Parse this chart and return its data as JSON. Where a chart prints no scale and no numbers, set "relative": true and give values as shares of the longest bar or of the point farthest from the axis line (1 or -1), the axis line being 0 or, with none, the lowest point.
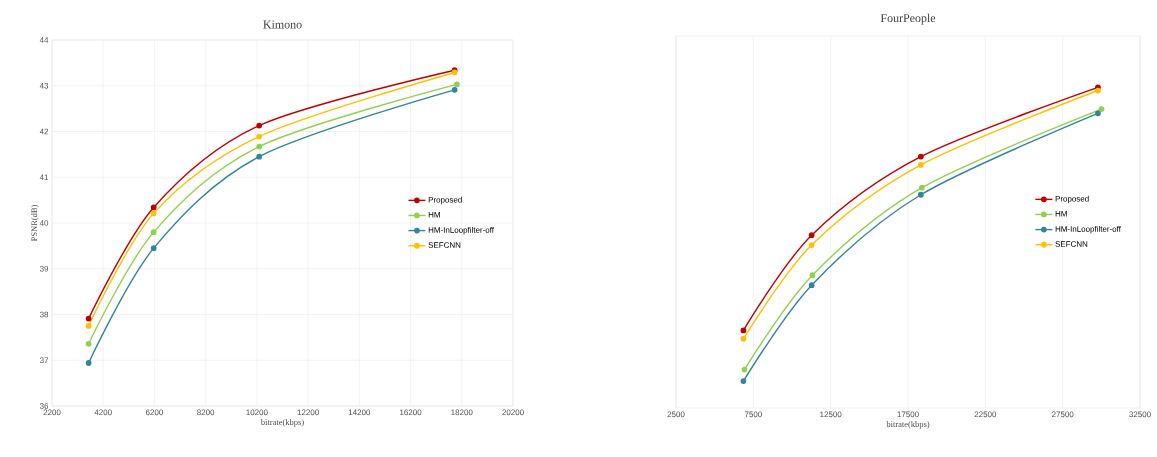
{
  "chart_data": [
    {
      "type": "line",
      "title": "Kimono",
      "xlabel": "bitrate(kbps)",
      "ylabel": "PSNR(dB)",
      "xlim": [
        2200,
        20200
      ],
      "xticks": [
        2200,
        4200,
        6200,
        8200,
        10200,
        12200,
        14200,
        16200,
        18200,
        20200
      ],
      "ylim": [
        36,
        44
      ],
      "yticks": [
        36,
        37,
        38,
        39,
        40,
        41,
        42,
        43,
        44
      ],
      "grid": true,
      "legend": "right",
      "marker": "circle",
      "line_style": "solid",
      "series": [
        {
          "name": "Proposed",
          "color": "#c00000",
          "x": [
            3630,
            6170,
            10290,
            17920
          ],
          "values": [
            37.91,
            40.34,
            42.13,
            43.34
          ]
        },
        {
          "name": "HM",
          "color": "#92d050",
          "x": [
            3630,
            6170,
            10290,
            18010
          ],
          "values": [
            37.36,
            39.8,
            41.67,
            43.03
          ]
        },
        {
          "name": "HM-InLoopfilter-off",
          "color": "#31859c",
          "x": [
            3630,
            6170,
            10290,
            17920
          ],
          "values": [
            36.94,
            39.45,
            41.45,
            42.91
          ]
        },
        {
          "name": "SEFCNN",
          "color": "#ffc000",
          "x": [
            3630,
            6170,
            10290,
            17920
          ],
          "values": [
            37.75,
            40.21,
            41.89,
            43.29
          ]
        }
      ]
    },
    {
      "type": "line",
      "title": "FourPeople",
      "xlabel": "bitrate(kbps)",
      "relative": true,
      "xlim": [
        2500,
        32500
      ],
      "xticks": [
        2500,
        7500,
        12500,
        17500,
        22500,
        27500,
        32500
      ],
      "grid": true,
      "legend": "right",
      "marker": "circle",
      "line_style": "solid",
      "series": [
        {
          "name": "Proposed",
          "color": "#c00000",
          "x": [
            6860,
            11270,
            18330,
            29780
          ],
          "values": [
            0.242,
            0.539,
            0.784,
            1
          ]
        },
        {
          "name": "HM",
          "color": "#92d050",
          "x": [
            6930,
            11320,
            18400,
            30010
          ],
          "values": [
            0.12,
            0.414,
            0.687,
            0.932
          ]
        },
        {
          "name": "HM-InLoopfilter-off",
          "color": "#31859c",
          "x": [
            6860,
            11270,
            18330,
            29780
          ],
          "values": [
            0.084,
            0.383,
            0.665,
            0.919
          ]
        },
        {
          "name": "SEFCNN",
          "color": "#ffc000",
          "x": [
            6860,
            11270,
            18330,
            29780
          ],
          "values": [
            0.216,
            0.508,
            0.758,
            0.99
          ]
        }
      ]
    }
  ]
}
